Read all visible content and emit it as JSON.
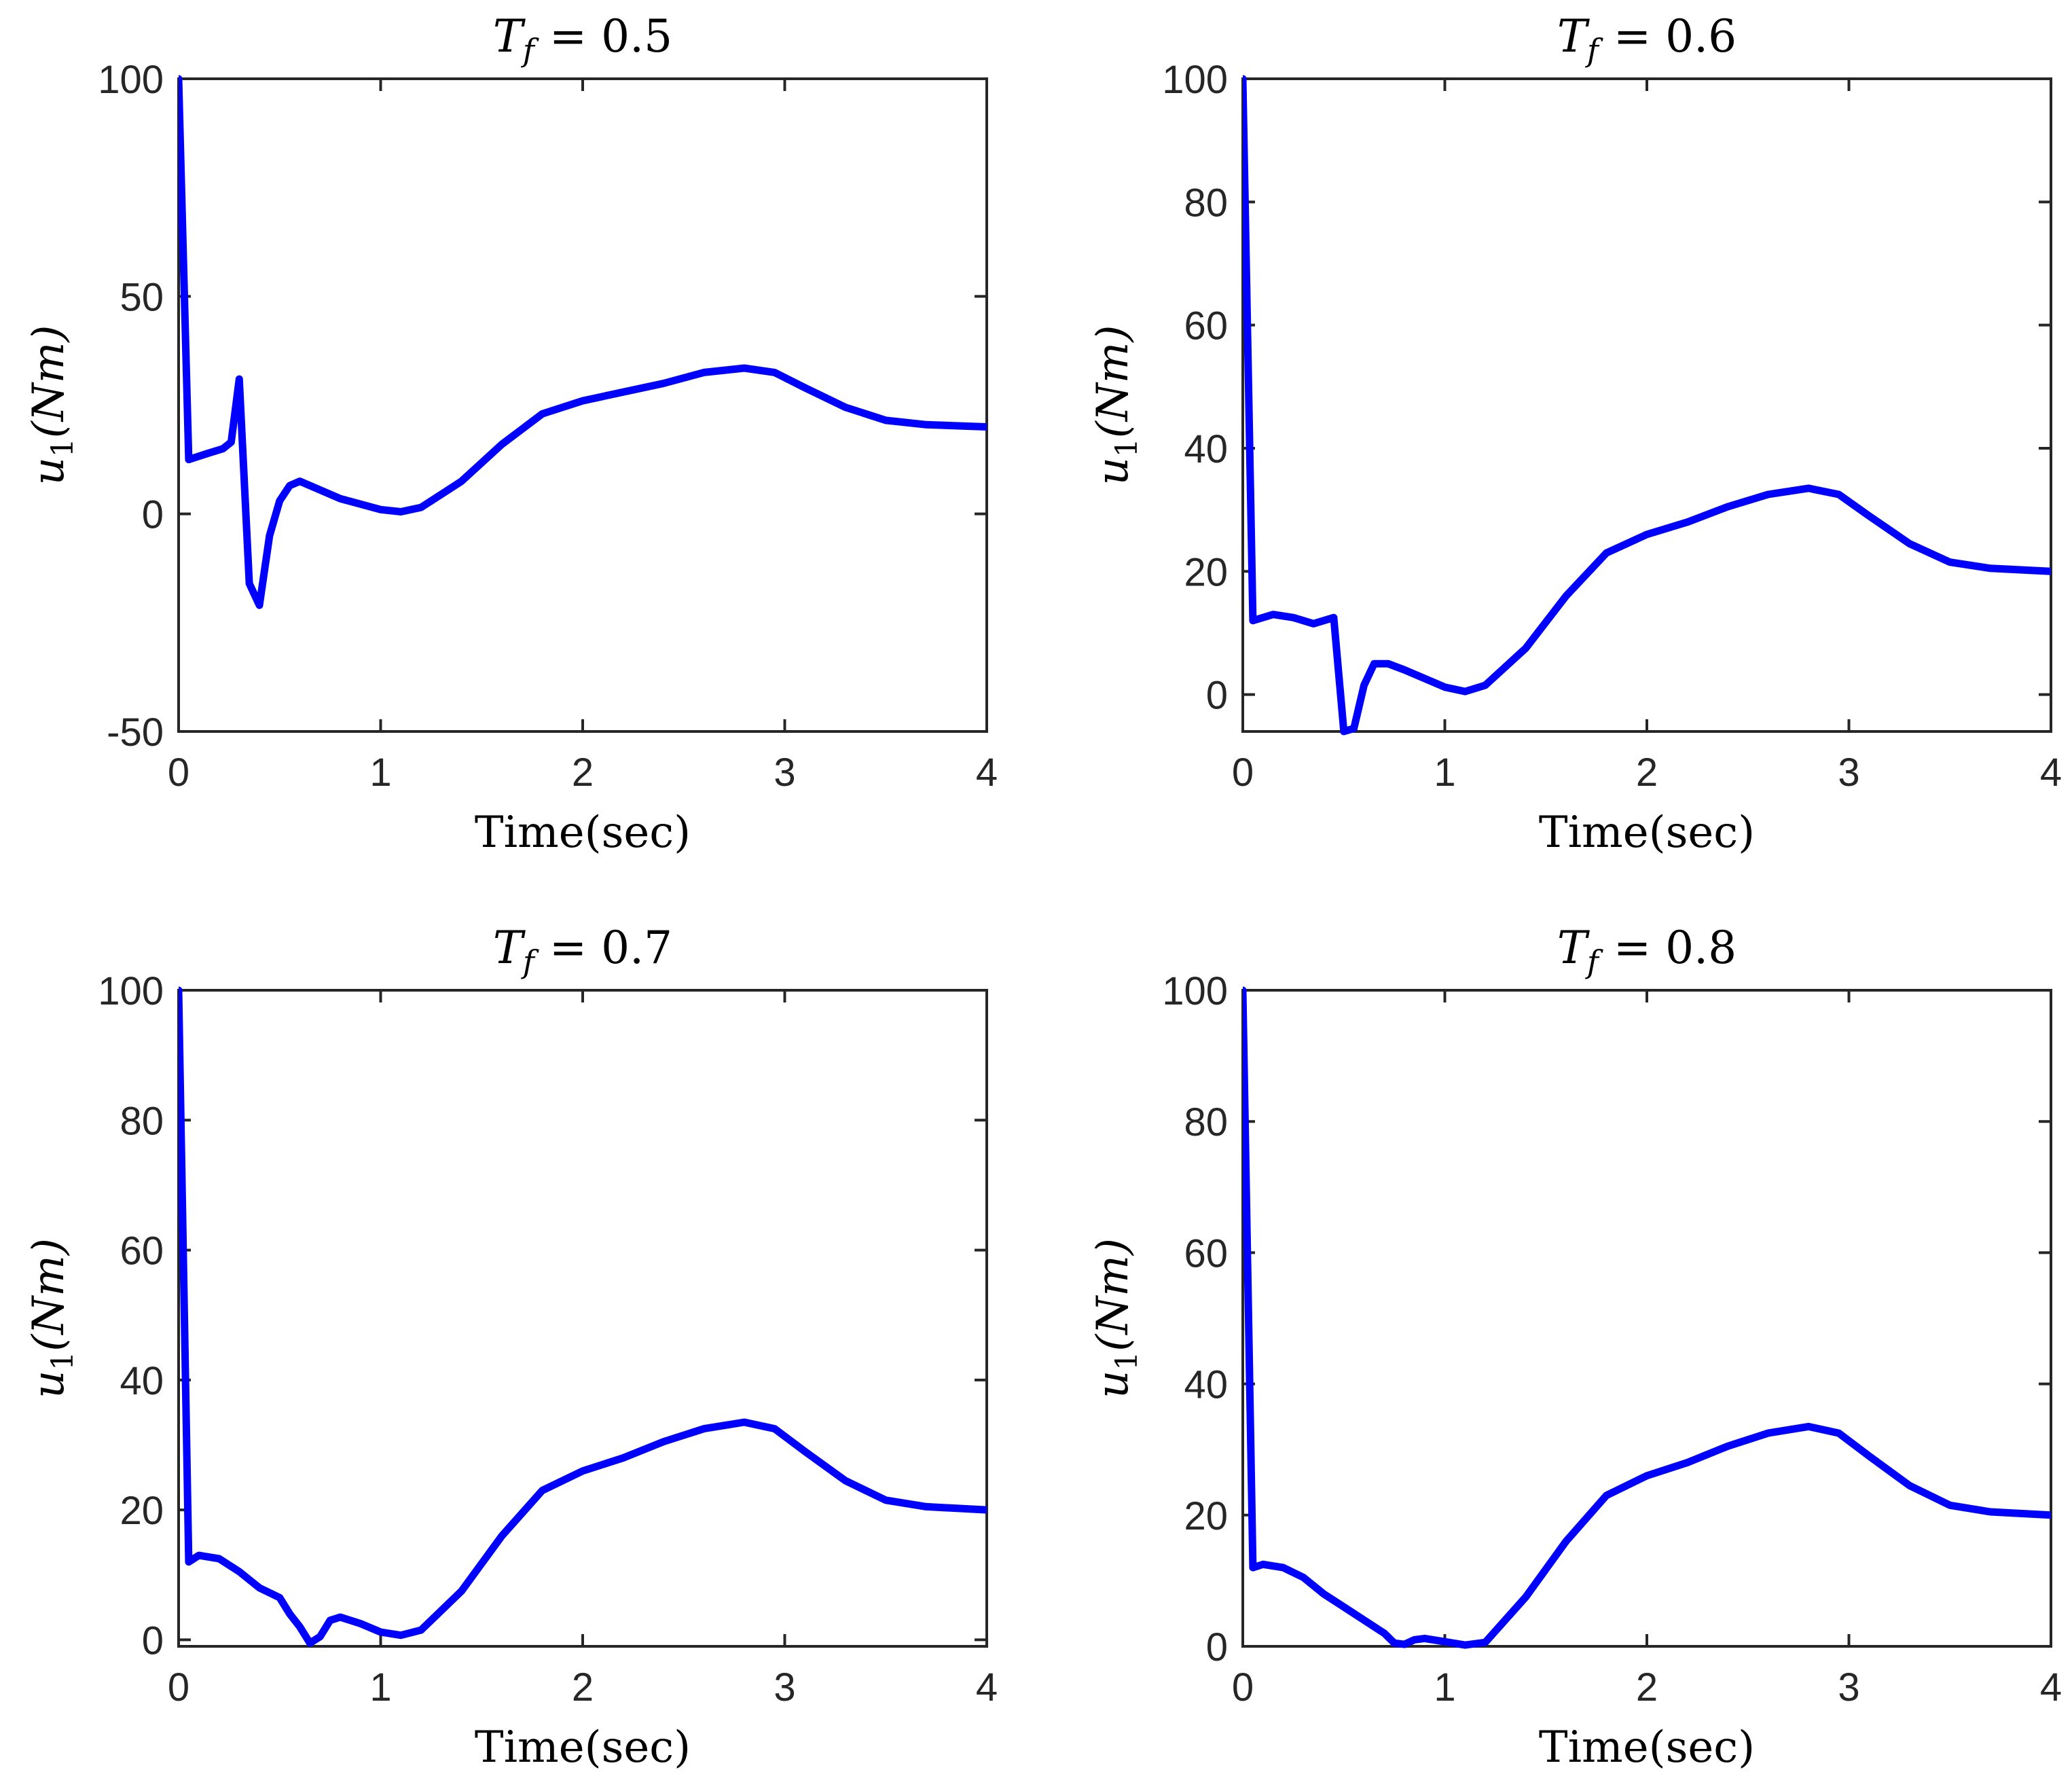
{
  "chart_data": [
    {
      "type": "line",
      "title": "T_f = 0.5",
      "title_var": "T",
      "title_sub": "f",
      "title_value": "= 0.5",
      "xlabel": "Time(sec)",
      "ylabel_var": "u",
      "ylabel_sub": "1",
      "ylabel_unit": "(Nm)",
      "xlim": [
        0,
        4
      ],
      "ylim": [
        -50,
        100
      ],
      "xticks": [
        0,
        1,
        2,
        3,
        4
      ],
      "yticks": [
        -50,
        0,
        50,
        100
      ],
      "ytick_labels": [
        "-50",
        "0",
        "50",
        "100"
      ],
      "grid": false,
      "series": [
        {
          "name": "u1",
          "color": "#0000ff",
          "x": [
            0,
            0.05,
            0.15,
            0.22,
            0.26,
            0.3,
            0.35,
            0.4,
            0.45,
            0.5,
            0.55,
            0.6,
            0.8,
            1.0,
            1.1,
            1.2,
            1.4,
            1.6,
            1.8,
            2.0,
            2.2,
            2.4,
            2.6,
            2.8,
            2.95,
            3.1,
            3.3,
            3.5,
            3.7,
            4.0
          ],
          "y": [
            100,
            12.5,
            14,
            15,
            16.5,
            31,
            -16,
            -21,
            -5,
            3,
            6.5,
            7.5,
            3.5,
            1,
            0.5,
            1.5,
            7.5,
            16,
            23,
            26,
            28,
            30,
            32.5,
            33.5,
            32.5,
            29,
            24.5,
            21.5,
            20.5,
            20
          ]
        }
      ]
    },
    {
      "type": "line",
      "title": "T_f = 0.6",
      "title_var": "T",
      "title_sub": "f",
      "title_value": "= 0.6",
      "xlabel": "Time(sec)",
      "ylabel_var": "u",
      "ylabel_sub": "1",
      "ylabel_unit": "(Nm)",
      "xlim": [
        0,
        4
      ],
      "ylim": [
        -6,
        100
      ],
      "xticks": [
        0,
        1,
        2,
        3,
        4
      ],
      "yticks": [
        0,
        20,
        40,
        60,
        80,
        100
      ],
      "ytick_labels": [
        "0",
        "20",
        "40",
        "60",
        "80",
        "100"
      ],
      "grid": false,
      "series": [
        {
          "name": "u1",
          "color": "#0000ff",
          "x": [
            0,
            0.05,
            0.15,
            0.25,
            0.35,
            0.45,
            0.5,
            0.55,
            0.6,
            0.65,
            0.72,
            0.8,
            1.0,
            1.1,
            1.2,
            1.4,
            1.6,
            1.8,
            2.0,
            2.2,
            2.4,
            2.6,
            2.8,
            2.95,
            3.1,
            3.3,
            3.5,
            3.7,
            4.0
          ],
          "y": [
            100,
            12,
            13,
            12.5,
            11.5,
            12.5,
            -6,
            -5.5,
            1.5,
            5,
            5,
            4,
            1.2,
            0.5,
            1.5,
            7.5,
            16,
            23,
            26,
            28,
            30.5,
            32.5,
            33.5,
            32.5,
            29,
            24.5,
            21.5,
            20.5,
            20
          ]
        }
      ]
    },
    {
      "type": "line",
      "title": "T_f = 0.7",
      "title_var": "T",
      "title_sub": "f",
      "title_value": "= 0.7",
      "xlabel": "Time(sec)",
      "ylabel_var": "u",
      "ylabel_sub": "1",
      "ylabel_unit": "(Nm)",
      "xlim": [
        0,
        4
      ],
      "ylim": [
        -1,
        100
      ],
      "xticks": [
        0,
        1,
        2,
        3,
        4
      ],
      "yticks": [
        0,
        20,
        40,
        60,
        80,
        100
      ],
      "ytick_labels": [
        "0",
        "20",
        "40",
        "60",
        "80",
        "100"
      ],
      "grid": false,
      "series": [
        {
          "name": "u1",
          "color": "#0000ff",
          "x": [
            0,
            0.05,
            0.1,
            0.2,
            0.3,
            0.4,
            0.5,
            0.55,
            0.6,
            0.65,
            0.7,
            0.75,
            0.8,
            0.9,
            1.0,
            1.1,
            1.2,
            1.4,
            1.6,
            1.8,
            2.0,
            2.2,
            2.4,
            2.6,
            2.8,
            2.95,
            3.1,
            3.3,
            3.5,
            3.7,
            4.0
          ],
          "y": [
            100,
            12,
            13,
            12.5,
            10.5,
            8,
            6.5,
            4,
            2,
            -0.5,
            0.5,
            3,
            3.5,
            2.5,
            1.2,
            0.7,
            1.5,
            7.5,
            16,
            23,
            26,
            28,
            30.5,
            32.5,
            33.5,
            32.5,
            29,
            24.5,
            21.5,
            20.5,
            20
          ]
        }
      ]
    },
    {
      "type": "line",
      "title": "T_f = 0.8",
      "title_var": "T",
      "title_sub": "f",
      "title_value": "= 0.8",
      "xlabel": "Time(sec)",
      "ylabel_var": "u",
      "ylabel_sub": "1",
      "ylabel_unit": "(Nm)",
      "xlim": [
        0,
        4
      ],
      "ylim": [
        0,
        100
      ],
      "xticks": [
        0,
        1,
        2,
        3,
        4
      ],
      "yticks": [
        0,
        20,
        40,
        60,
        80,
        100
      ],
      "ytick_labels": [
        "0",
        "20",
        "40",
        "60",
        "80",
        "100"
      ],
      "grid": false,
      "series": [
        {
          "name": "u1",
          "color": "#0000ff",
          "x": [
            0,
            0.05,
            0.1,
            0.2,
            0.3,
            0.4,
            0.5,
            0.6,
            0.7,
            0.75,
            0.8,
            0.85,
            0.9,
            1.0,
            1.1,
            1.2,
            1.4,
            1.6,
            1.8,
            2.0,
            2.2,
            2.4,
            2.6,
            2.8,
            2.95,
            3.1,
            3.3,
            3.5,
            3.7,
            4.0
          ],
          "y": [
            100,
            12,
            12.5,
            12,
            10.5,
            8,
            6,
            4,
            2,
            0.5,
            0.3,
            1,
            1.2,
            0.7,
            0.2,
            0.6,
            7.5,
            16,
            23,
            26,
            28,
            30.5,
            32.5,
            33.5,
            32.5,
            29,
            24.5,
            21.5,
            20.5,
            20
          ]
        }
      ]
    }
  ]
}
